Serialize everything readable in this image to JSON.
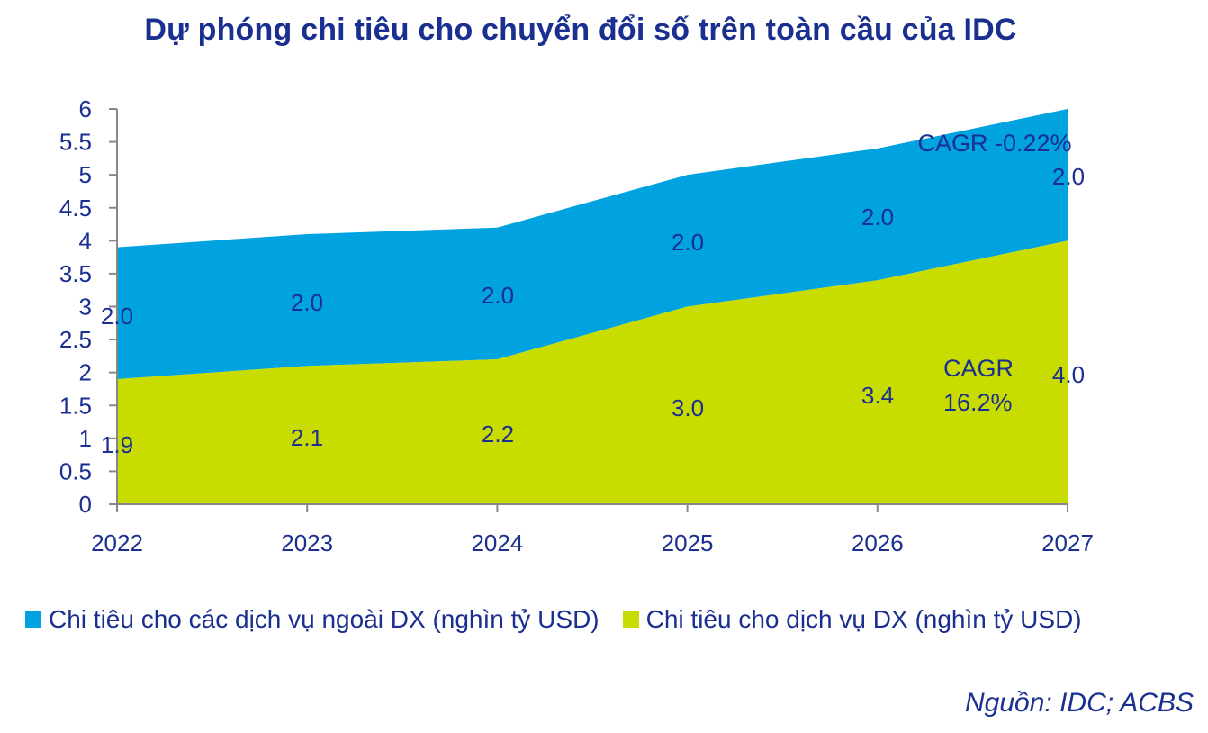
{
  "page": {
    "title": "Dự phóng chi tiêu cho chuyển đổi số trên toàn cầu của IDC",
    "source": "Nguồn: IDC; ACBS"
  },
  "colors": {
    "title": "#1a2f8f",
    "text": "#1a2f8f",
    "non_dx": "#00a3e0",
    "dx": "#c8dc00",
    "axis": "#888888"
  },
  "chart_data": {
    "type": "area",
    "stacked": true,
    "x": [
      "2022",
      "2023",
      "2024",
      "2025",
      "2026",
      "2027"
    ],
    "ylim": [
      0,
      6
    ],
    "yticks": [
      "0",
      "0.5",
      "1",
      "1.5",
      "2",
      "2.5",
      "3",
      "3.5",
      "4",
      "4.5",
      "5",
      "5.5",
      "6"
    ],
    "grid": false,
    "legend_position": "bottom",
    "series": [
      {
        "key": "dx",
        "name": "Chi tiêu cho dịch vụ DX (nghìn tỷ USD)",
        "values": [
          1.9,
          2.1,
          2.2,
          3.0,
          3.4,
          4.0
        ],
        "labels": [
          "1.9",
          "2.1",
          "2.2",
          "3.0",
          "3.4",
          "4.0"
        ]
      },
      {
        "key": "non_dx",
        "name": "Chi tiêu cho các dịch vụ ngoài DX (nghìn tỷ USD)",
        "values": [
          2.0,
          2.0,
          2.0,
          2.0,
          2.0,
          2.0
        ],
        "labels": [
          "2.0",
          "2.0",
          "2.0",
          "2.0",
          "2.0",
          "2.0"
        ]
      }
    ],
    "annotations": [
      {
        "series": "non_dx",
        "text": "CAGR -0.22%"
      },
      {
        "series": "dx",
        "text": "CAGR",
        "text2": "16.2%"
      }
    ]
  }
}
